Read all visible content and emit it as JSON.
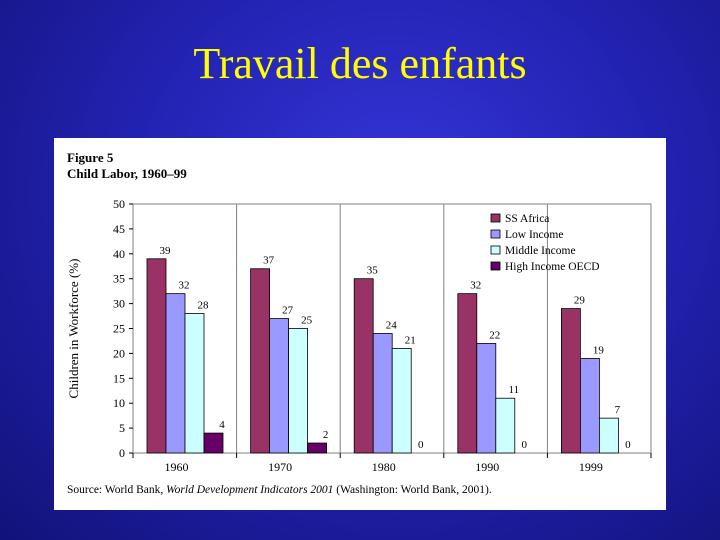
{
  "slide": {
    "title": "Travail des enfants"
  },
  "figure": {
    "label": "Figure 5",
    "title": "Child Labor, 1960–99",
    "source_prefix": "Source: World Bank, ",
    "source_title": "World Development Indicators 2001",
    "source_suffix": " (Washington: World Bank, 2001)."
  },
  "chart_data": {
    "type": "bar",
    "title": "Child Labor, 1960–99",
    "xlabel": "",
    "ylabel": "Children in Workforce (%)",
    "categories": [
      "1960",
      "1970",
      "1980",
      "1990",
      "1999"
    ],
    "ylim": [
      0,
      50
    ],
    "yticks": [
      0,
      5,
      10,
      15,
      20,
      25,
      30,
      35,
      40,
      45,
      50
    ],
    "grid": "vertical lines between categories",
    "legend_position": "top-right",
    "series": [
      {
        "name": "SS Africa",
        "color": "#993366",
        "values": [
          39,
          37,
          35,
          32,
          29
        ]
      },
      {
        "name": "Low Income",
        "color": "#9999ff",
        "values": [
          32,
          27,
          24,
          22,
          19
        ]
      },
      {
        "name": "Middle Income",
        "color": "#ccffff",
        "values": [
          28,
          25,
          21,
          11,
          7
        ]
      },
      {
        "name": "High Income OECD",
        "color": "#660066",
        "values": [
          4,
          2,
          0,
          0,
          0
        ]
      }
    ]
  }
}
